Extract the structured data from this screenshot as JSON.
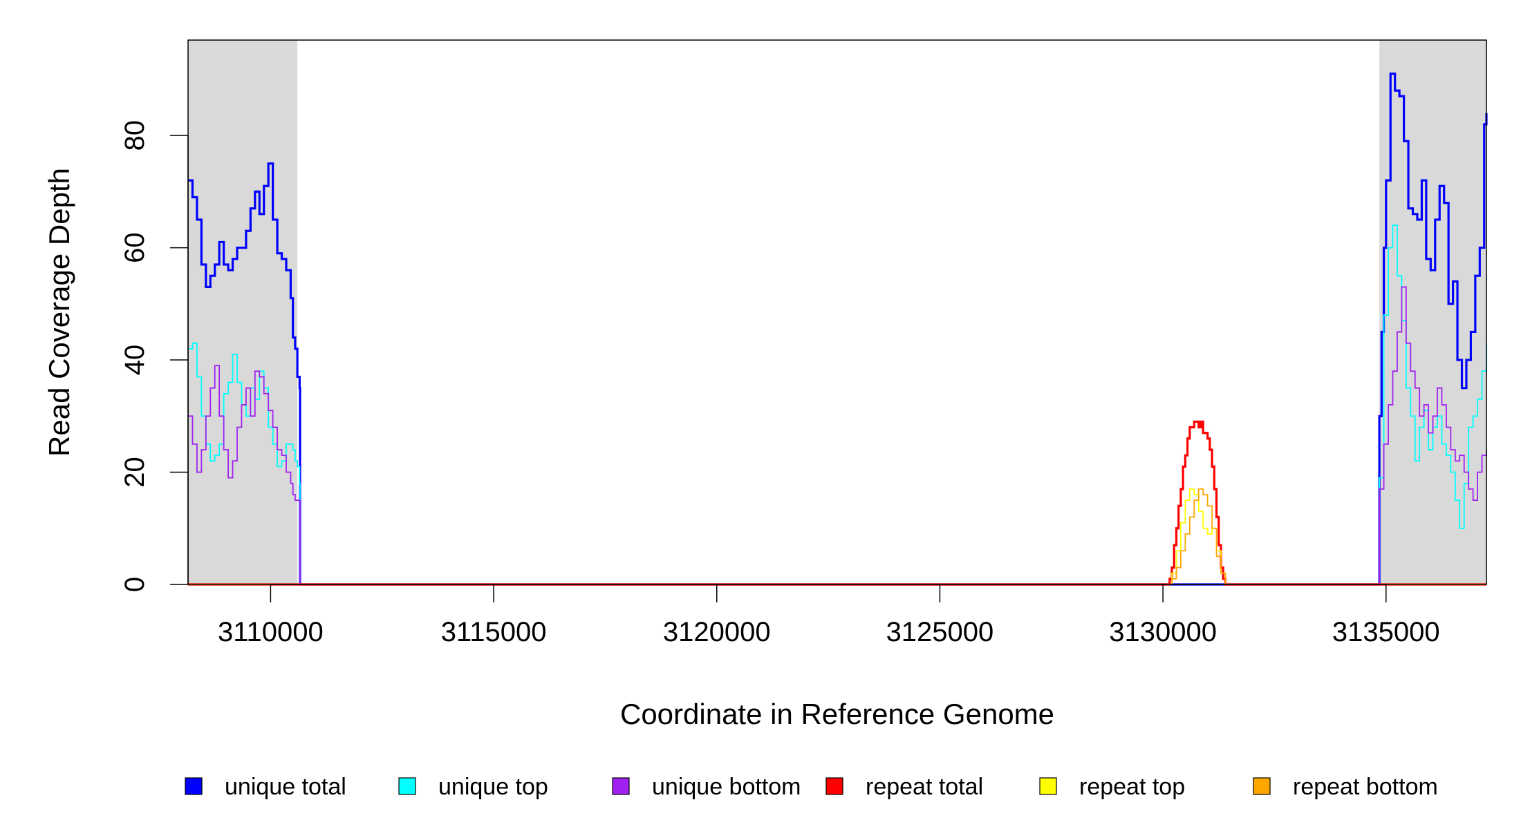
{
  "chart_data": {
    "type": "line",
    "xlabel": "Coordinate in Reference Genome",
    "ylabel": "Read Coverage Depth",
    "xlim": [
      3108150,
      3137250
    ],
    "ylim": [
      0,
      97
    ],
    "x_ticks": [
      3110000,
      3115000,
      3120000,
      3125000,
      3130000,
      3135000
    ],
    "x_tick_labels": [
      "3110000",
      "3115000",
      "3120000",
      "3125000",
      "3130000",
      "3135000"
    ],
    "y_ticks": [
      0,
      20,
      40,
      60,
      80
    ],
    "y_tick_labels": [
      "0",
      "20",
      "40",
      "60",
      "80"
    ],
    "shaded_regions": [
      {
        "x0": 3108150,
        "x1": 3110600,
        "color": "#d9d9d9"
      },
      {
        "x0": 3134850,
        "x1": 3137250,
        "color": "#d9d9d9"
      }
    ],
    "grid": false,
    "legend_position": "bottom",
    "series": [
      {
        "name": "unique total",
        "color": "#0000ff",
        "width": 3.2,
        "points": [
          [
            3108150,
            72
          ],
          [
            3108250,
            69
          ],
          [
            3108350,
            65
          ],
          [
            3108450,
            57
          ],
          [
            3108550,
            53
          ],
          [
            3108650,
            55
          ],
          [
            3108750,
            57
          ],
          [
            3108850,
            61
          ],
          [
            3108950,
            57
          ],
          [
            3109050,
            56
          ],
          [
            3109150,
            58
          ],
          [
            3109250,
            60
          ],
          [
            3109350,
            60
          ],
          [
            3109450,
            63
          ],
          [
            3109550,
            67
          ],
          [
            3109650,
            70
          ],
          [
            3109750,
            66
          ],
          [
            3109850,
            71
          ],
          [
            3109950,
            75
          ],
          [
            3110050,
            65
          ],
          [
            3110150,
            59
          ],
          [
            3110250,
            58
          ],
          [
            3110350,
            56
          ],
          [
            3110450,
            51
          ],
          [
            3110500,
            44
          ],
          [
            3110550,
            42
          ],
          [
            3110600,
            37
          ],
          [
            3110650,
            35
          ],
          [
            3110660,
            0
          ],
          [
            3115000,
            0
          ],
          [
            3120000,
            0
          ],
          [
            3125000,
            0
          ],
          [
            3130000,
            0
          ],
          [
            3134750,
            0
          ],
          [
            3134800,
            0
          ],
          [
            3134850,
            30
          ],
          [
            3134900,
            45
          ],
          [
            3134950,
            60
          ],
          [
            3135000,
            72
          ],
          [
            3135100,
            91
          ],
          [
            3135200,
            88
          ],
          [
            3135300,
            87
          ],
          [
            3135400,
            79
          ],
          [
            3135500,
            67
          ],
          [
            3135600,
            66
          ],
          [
            3135700,
            65
          ],
          [
            3135800,
            72
          ],
          [
            3135900,
            58
          ],
          [
            3136000,
            56
          ],
          [
            3136100,
            65
          ],
          [
            3136200,
            71
          ],
          [
            3136300,
            68
          ],
          [
            3136400,
            50
          ],
          [
            3136500,
            54
          ],
          [
            3136600,
            40
          ],
          [
            3136700,
            35
          ],
          [
            3136800,
            40
          ],
          [
            3136900,
            45
          ],
          [
            3137000,
            55
          ],
          [
            3137100,
            60
          ],
          [
            3137200,
            82
          ],
          [
            3137250,
            84
          ]
        ]
      },
      {
        "name": "unique top",
        "color": "#00ffff",
        "width": 1.8,
        "points": [
          [
            3108150,
            42
          ],
          [
            3108250,
            43
          ],
          [
            3108350,
            37
          ],
          [
            3108450,
            30
          ],
          [
            3108550,
            25
          ],
          [
            3108650,
            22
          ],
          [
            3108750,
            23
          ],
          [
            3108850,
            25
          ],
          [
            3108950,
            34
          ],
          [
            3109050,
            36
          ],
          [
            3109150,
            41
          ],
          [
            3109250,
            36
          ],
          [
            3109350,
            32
          ],
          [
            3109450,
            30
          ],
          [
            3109550,
            35
          ],
          [
            3109650,
            33
          ],
          [
            3109750,
            38
          ],
          [
            3109850,
            35
          ],
          [
            3109950,
            28
          ],
          [
            3110050,
            25
          ],
          [
            3110150,
            21
          ],
          [
            3110250,
            22
          ],
          [
            3110350,
            25
          ],
          [
            3110450,
            25
          ],
          [
            3110500,
            24
          ],
          [
            3110550,
            22
          ],
          [
            3110600,
            21
          ],
          [
            3110650,
            18
          ],
          [
            3110660,
            0
          ],
          [
            3134800,
            0
          ],
          [
            3134850,
            19
          ],
          [
            3134950,
            48
          ],
          [
            3135050,
            60
          ],
          [
            3135150,
            64
          ],
          [
            3135250,
            55
          ],
          [
            3135350,
            47
          ],
          [
            3135450,
            35
          ],
          [
            3135550,
            30
          ],
          [
            3135650,
            22
          ],
          [
            3135750,
            28
          ],
          [
            3135850,
            31
          ],
          [
            3135950,
            24
          ],
          [
            3136050,
            28
          ],
          [
            3136150,
            30
          ],
          [
            3136250,
            25
          ],
          [
            3136350,
            23
          ],
          [
            3136450,
            20
          ],
          [
            3136550,
            15
          ],
          [
            3136650,
            10
          ],
          [
            3136750,
            18
          ],
          [
            3136850,
            28
          ],
          [
            3136950,
            30
          ],
          [
            3137050,
            33
          ],
          [
            3137150,
            38
          ],
          [
            3137250,
            43
          ]
        ]
      },
      {
        "name": "unique bottom",
        "color": "#a020f0",
        "width": 1.8,
        "points": [
          [
            3108150,
            30
          ],
          [
            3108250,
            25
          ],
          [
            3108350,
            20
          ],
          [
            3108450,
            24
          ],
          [
            3108550,
            30
          ],
          [
            3108650,
            35
          ],
          [
            3108750,
            39
          ],
          [
            3108850,
            30
          ],
          [
            3108950,
            24
          ],
          [
            3109050,
            19
          ],
          [
            3109150,
            22
          ],
          [
            3109250,
            28
          ],
          [
            3109350,
            32
          ],
          [
            3109450,
            35
          ],
          [
            3109550,
            30
          ],
          [
            3109650,
            38
          ],
          [
            3109750,
            37
          ],
          [
            3109850,
            34
          ],
          [
            3109950,
            31
          ],
          [
            3110050,
            28
          ],
          [
            3110150,
            24
          ],
          [
            3110250,
            23
          ],
          [
            3110350,
            20
          ],
          [
            3110450,
            18
          ],
          [
            3110500,
            16
          ],
          [
            3110550,
            15
          ],
          [
            3110650,
            15
          ],
          [
            3110660,
            0
          ],
          [
            3134800,
            0
          ],
          [
            3134850,
            17
          ],
          [
            3134950,
            25
          ],
          [
            3135050,
            32
          ],
          [
            3135150,
            38
          ],
          [
            3135250,
            45
          ],
          [
            3135350,
            53
          ],
          [
            3135450,
            43
          ],
          [
            3135550,
            38
          ],
          [
            3135650,
            35
          ],
          [
            3135750,
            30
          ],
          [
            3135850,
            32
          ],
          [
            3135950,
            27
          ],
          [
            3136050,
            30
          ],
          [
            3136150,
            35
          ],
          [
            3136250,
            32
          ],
          [
            3136350,
            28
          ],
          [
            3136450,
            24
          ],
          [
            3136550,
            22
          ],
          [
            3136650,
            23
          ],
          [
            3136750,
            20
          ],
          [
            3136850,
            17
          ],
          [
            3136950,
            15
          ],
          [
            3137050,
            20
          ],
          [
            3137150,
            23
          ],
          [
            3137250,
            24
          ]
        ]
      },
      {
        "name": "repeat total",
        "color": "#ff0000",
        "width": 3.2,
        "points": [
          [
            3108150,
            0
          ],
          [
            3130100,
            0
          ],
          [
            3130150,
            1
          ],
          [
            3130200,
            3
          ],
          [
            3130250,
            7
          ],
          [
            3130300,
            10
          ],
          [
            3130350,
            14
          ],
          [
            3130400,
            17
          ],
          [
            3130450,
            21
          ],
          [
            3130500,
            23
          ],
          [
            3130550,
            26
          ],
          [
            3130600,
            28
          ],
          [
            3130700,
            29
          ],
          [
            3130800,
            28
          ],
          [
            3130850,
            29
          ],
          [
            3130900,
            27
          ],
          [
            3131000,
            26
          ],
          [
            3131050,
            24
          ],
          [
            3131100,
            21
          ],
          [
            3131150,
            17
          ],
          [
            3131200,
            12
          ],
          [
            3131250,
            7
          ],
          [
            3131300,
            3
          ],
          [
            3131350,
            1
          ],
          [
            3131400,
            0
          ],
          [
            3137250,
            0
          ]
        ]
      },
      {
        "name": "repeat top",
        "color": "#ffff00",
        "width": 1.8,
        "points": [
          [
            3108150,
            0
          ],
          [
            3130100,
            0
          ],
          [
            3130200,
            2
          ],
          [
            3130300,
            6
          ],
          [
            3130400,
            11
          ],
          [
            3130500,
            15
          ],
          [
            3130600,
            17
          ],
          [
            3130700,
            16
          ],
          [
            3130800,
            13
          ],
          [
            3130900,
            10
          ],
          [
            3131000,
            9
          ],
          [
            3131100,
            10
          ],
          [
            3131200,
            6
          ],
          [
            3131300,
            2
          ],
          [
            3131400,
            0
          ],
          [
            3137250,
            0
          ]
        ]
      },
      {
        "name": "repeat bottom",
        "color": "#ffa500",
        "width": 1.8,
        "points": [
          [
            3108150,
            0
          ],
          [
            3130100,
            0
          ],
          [
            3130200,
            1
          ],
          [
            3130300,
            3
          ],
          [
            3130400,
            6
          ],
          [
            3130500,
            9
          ],
          [
            3130600,
            12
          ],
          [
            3130700,
            15
          ],
          [
            3130800,
            17
          ],
          [
            3130900,
            16
          ],
          [
            3131000,
            14
          ],
          [
            3131100,
            10
          ],
          [
            3131200,
            5
          ],
          [
            3131300,
            2
          ],
          [
            3131400,
            0
          ],
          [
            3137250,
            0
          ]
        ]
      }
    ]
  }
}
